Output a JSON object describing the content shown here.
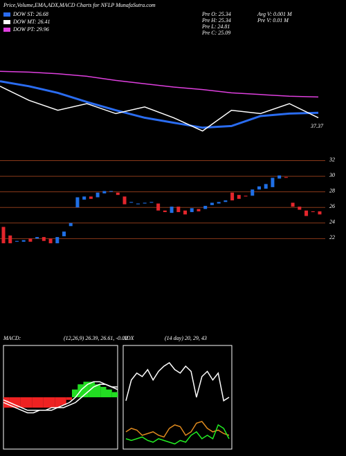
{
  "header": {
    "title": "Price,Volume,EMA,ADX,MACD Charts for NFLP MunafaSutra.com",
    "pre_open": "Pre  O: 25.34",
    "pre_high": "Pre  H: 25.34",
    "pre_low": "Pre  L: 24.81",
    "pre_close": "Pre  C: 25.09",
    "avg_volume": "Avg V: 0.001 M",
    "pre_volume": "Pre  V: 0.01 M"
  },
  "chart_data": [
    {
      "type": "line",
      "ylim": [
        0,
        100
      ],
      "annotation": "37.37",
      "series": [
        {
          "name": "DOW ST: 26.68",
          "color": "#2a6cf0",
          "values": [
            77,
            71,
            63,
            52,
            42,
            33,
            27,
            21,
            23,
            35,
            38,
            39
          ]
        },
        {
          "name": "DOW MT: 26.41",
          "color": "#ffffff",
          "values": [
            71,
            54,
            42,
            50,
            38,
            46,
            33,
            17,
            42,
            38,
            50,
            33
          ]
        },
        {
          "name": "DOW PT: 29.96",
          "color": "#e040e0",
          "values": [
            89,
            88,
            86,
            83,
            78,
            74,
            70,
            67,
            63,
            61,
            59,
            58
          ]
        }
      ]
    },
    {
      "type": "candlestick",
      "ylim": [
        20.7,
        32.4
      ],
      "yticks": [
        22,
        24,
        26,
        28,
        30,
        32
      ],
      "up_color": "#1f6fe5",
      "down_color": "#e3262c",
      "grid": true,
      "open": [
        23.5,
        22.4,
        21.6,
        21.6,
        22.0,
        22.0,
        22.2,
        22.0,
        21.4,
        22.3,
        23.6,
        26.0,
        27.0,
        27.4,
        27.3,
        27.8,
        28.0,
        27.9,
        27.4,
        26.6,
        26.4,
        26.5,
        26.6,
        26.5,
        25.6,
        25.3,
        26.1,
        25.6,
        25.4,
        25.8,
        25.8,
        26.3,
        26.5,
        26.7,
        27.9,
        27.6,
        27.5,
        27.5,
        28.3,
        28.4,
        28.6,
        29.7,
        29.9,
        26.6,
        26.1,
        25.6,
        25.5,
        25.5
      ],
      "close": [
        21.4,
        21.4,
        21.7,
        21.8,
        21.6,
        22.2,
        21.7,
        21.4,
        22.2,
        22.9,
        24.0,
        27.3,
        27.4,
        27.1,
        27.9,
        28.1,
        28.1,
        27.6,
        26.4,
        26.7,
        26.5,
        26.6,
        26.7,
        25.6,
        25.4,
        26.1,
        25.4,
        25.1,
        25.9,
        25.5,
        26.2,
        26.6,
        26.7,
        26.9,
        26.9,
        27.1,
        27.4,
        28.3,
        28.7,
        29.0,
        29.8,
        30.1,
        29.8,
        26.1,
        25.7,
        24.9,
        25.4,
        25.1
      ]
    },
    {
      "type": "macd",
      "title": "MACD:",
      "subtitle": "(12,26,9) 26.39, 26.61, -0.02",
      "ylim": [
        -20,
        20
      ],
      "up_color": "#22dd22",
      "down_color": "#ee2222",
      "histogram": [
        -4,
        -4,
        -4,
        -4,
        -4,
        -4,
        -4,
        -4,
        -4,
        -4,
        -3,
        -1,
        3,
        5,
        6,
        6,
        5,
        4,
        3,
        2
      ],
      "series": [
        {
          "color": "#ffffff",
          "values": [
            -2,
            -3,
            -4,
            -5,
            -6,
            -6,
            -5,
            -5,
            -4,
            -4,
            -3,
            -2,
            0,
            3,
            5,
            6,
            6,
            5,
            4,
            3
          ]
        },
        {
          "color": "#ffffff",
          "values": [
            -1,
            -2,
            -3,
            -4,
            -5,
            -5,
            -5,
            -5,
            -5,
            -4,
            -4,
            -3,
            -2,
            0,
            2,
            4,
            5,
            5,
            4,
            4
          ]
        }
      ]
    },
    {
      "type": "adx",
      "title": "ADX",
      "subtitle": "(14 day) 20, 29, 43",
      "ylim": [
        0,
        60
      ],
      "series": [
        {
          "color": "#ffffff",
          "values": [
            28,
            40,
            44,
            42,
            46,
            40,
            45,
            48,
            50,
            46,
            44,
            48,
            45,
            30,
            42,
            45,
            40,
            44,
            28,
            30
          ]
        },
        {
          "color": "#e08a1e",
          "values": [
            10,
            12,
            11,
            8,
            9,
            10,
            8,
            7,
            12,
            14,
            13,
            8,
            10,
            15,
            16,
            12,
            10,
            11,
            9,
            8
          ]
        },
        {
          "color": "#22ee22",
          "values": [
            6,
            5,
            6,
            7,
            5,
            4,
            6,
            5,
            4,
            3,
            5,
            4,
            8,
            10,
            6,
            8,
            6,
            14,
            12,
            6
          ]
        }
      ]
    }
  ]
}
